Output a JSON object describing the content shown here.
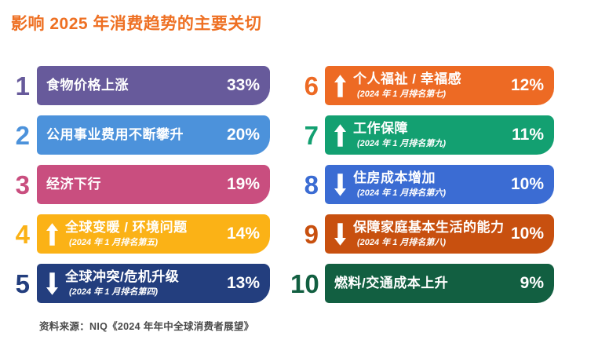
{
  "title": "影响 2025 年消费趋势的主要关切",
  "footer": {
    "source": "资料来源：NIQ《2024 年年中全球消费者展望》"
  },
  "colors": {
    "background": "#FFFFFF",
    "title": "#EE7023",
    "source_text": "#4A4A4A",
    "bar_text": "#FFFFFF"
  },
  "chart_data": {
    "type": "bar",
    "title": "影响 2025 年消费趋势的主要关切",
    "unit": "%",
    "layout": "two-column ranked list; ranks 1-5 in left column, ranks 6-10 in right column; equal-width color bars with rank number outside, value inside right edge",
    "items": [
      {
        "rank": 1,
        "label": "食物价格上涨",
        "value": 33,
        "value_label": "33%",
        "arrow": null,
        "sublabel": null,
        "color": "#675A9B"
      },
      {
        "rank": 2,
        "label": "公用事业费用不断攀升",
        "value": 20,
        "value_label": "20%",
        "arrow": null,
        "sublabel": null,
        "color": "#4C92DB"
      },
      {
        "rank": 3,
        "label": "经济下行",
        "value": 19,
        "value_label": "19%",
        "arrow": null,
        "sublabel": null,
        "color": "#C94E7F"
      },
      {
        "rank": 4,
        "label": "全球变暖 / 环境问题",
        "value": 14,
        "value_label": "14%",
        "arrow": "up",
        "sublabel": "(2024 年 1 月排名第五)",
        "color": "#FBB216"
      },
      {
        "rank": 5,
        "label": "全球冲突/危机升级",
        "value": 13,
        "value_label": "13%",
        "arrow": "down",
        "sublabel": "(2024 年 1 月排名第四)",
        "color": "#233E7E"
      },
      {
        "rank": 6,
        "label": "个人福祉 / 幸福感",
        "value": 12,
        "value_label": "12%",
        "arrow": "up",
        "sublabel": "(2024 年 1 月排名第七)",
        "color": "#ED6A24"
      },
      {
        "rank": 7,
        "label": "工作保障",
        "value": 11,
        "value_label": "11%",
        "arrow": "up",
        "sublabel": "(2024 年 1 月排名第九)",
        "color": "#13A071"
      },
      {
        "rank": 8,
        "label": "住房成本增加",
        "value": 10,
        "value_label": "10%",
        "arrow": "down",
        "sublabel": "(2024 年 1 月排名第六)",
        "color": "#3B6CD3"
      },
      {
        "rank": 9,
        "label": "保障家庭基本生活的能力",
        "value": 10,
        "value_label": "10%",
        "arrow": "down",
        "sublabel": "(2024 年 1 月排名第八)",
        "color": "#C8500F"
      },
      {
        "rank": 10,
        "label": "燃料/交通成本上升",
        "value": 9,
        "value_label": "9%",
        "arrow": null,
        "sublabel": null,
        "color": "#125F41"
      }
    ]
  }
}
